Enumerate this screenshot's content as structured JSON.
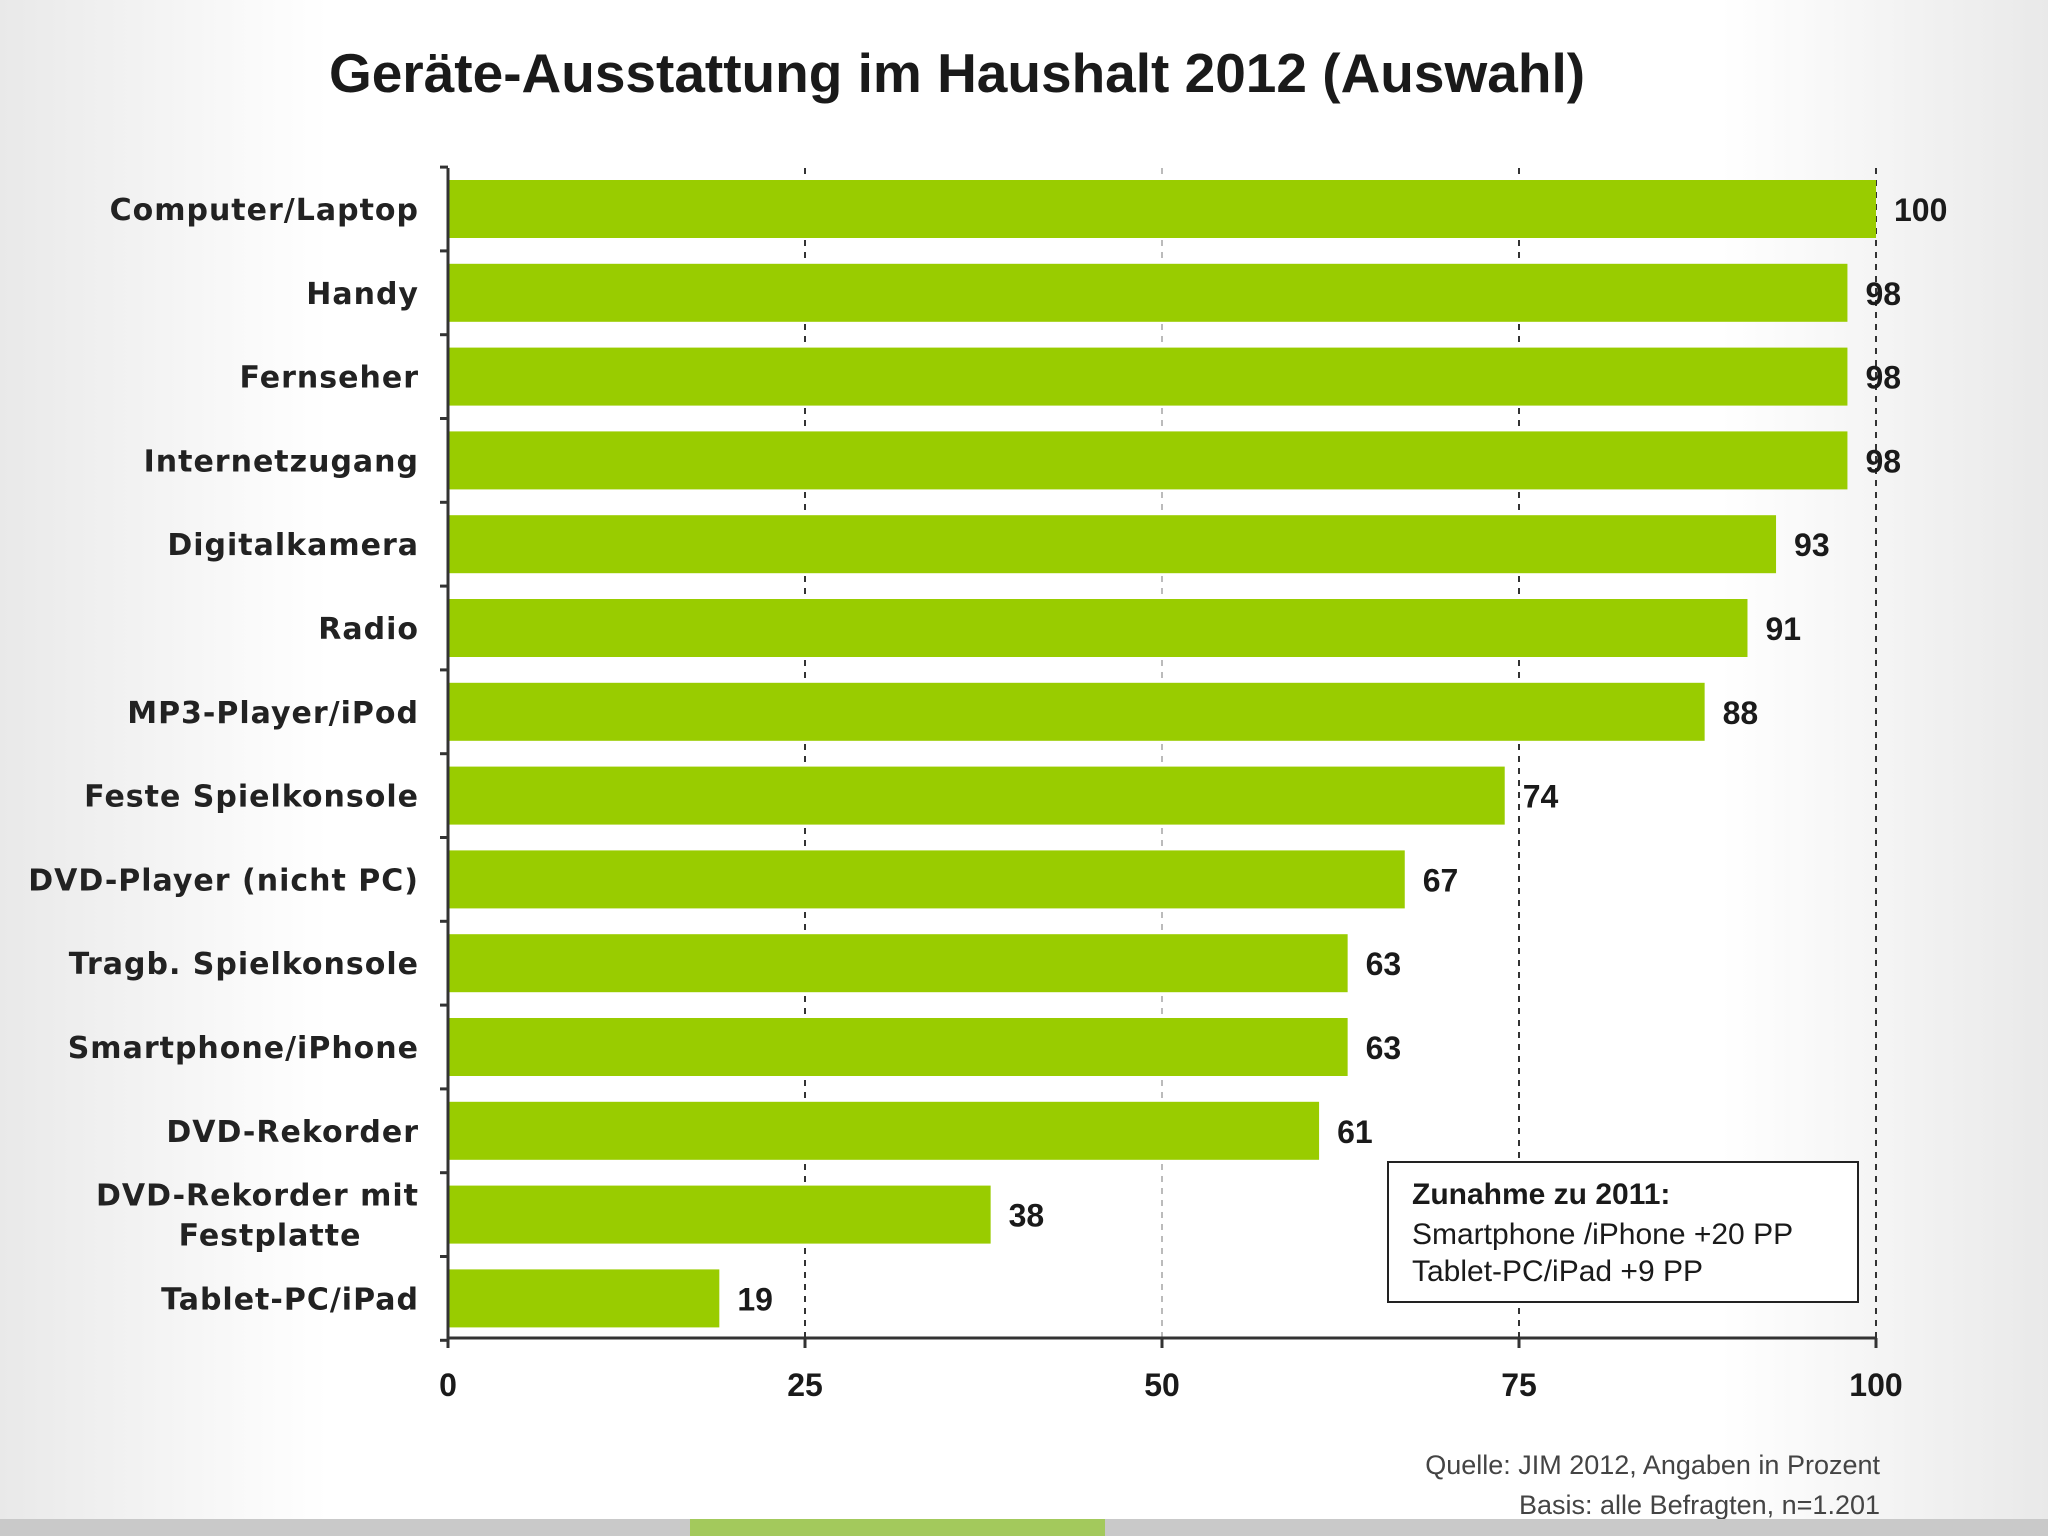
{
  "chart_data": {
    "type": "bar",
    "orientation": "horizontal",
    "title": "Geräte-Ausstattung im Haushalt 2012 (Auswahl)",
    "categories": [
      [
        "Computer/Laptop"
      ],
      [
        "Handy"
      ],
      [
        "Fernseher"
      ],
      [
        "Internetzugang"
      ],
      [
        "Digitalkamera"
      ],
      [
        "Radio"
      ],
      [
        "MP3-Player/iPod"
      ],
      [
        "Feste Spielkonsole"
      ],
      [
        "DVD-Player (nicht PC)"
      ],
      [
        "Tragb. Spielkonsole"
      ],
      [
        "Smartphone/iPhone"
      ],
      [
        "DVD-Rekorder"
      ],
      [
        "DVD-Rekorder mit",
        "Festplatte"
      ],
      [
        "Tablet-PC/iPad"
      ]
    ],
    "values": [
      100,
      98,
      98,
      98,
      93,
      91,
      88,
      74,
      67,
      63,
      63,
      61,
      38,
      19
    ],
    "xlim": [
      0,
      100
    ],
    "xticks": [
      0,
      25,
      50,
      75,
      100
    ],
    "xlabel": "",
    "ylabel": "",
    "bar_color": "#99cc00",
    "grid": true
  },
  "annotation": {
    "heading": "Zunahme zu 2011:",
    "lines": [
      "Smartphone /iPhone +20 PP",
      "Tablet-PC/iPad +9 PP"
    ]
  },
  "source": {
    "line1": "Quelle: JIM 2012, Angaben in Prozent",
    "line2": "Basis: alle Befragten, n=1.201"
  },
  "colors": {
    "bar": "#99cc00",
    "footer_accent": "#a3c95c",
    "footer_strip": "#c9c9c9"
  }
}
